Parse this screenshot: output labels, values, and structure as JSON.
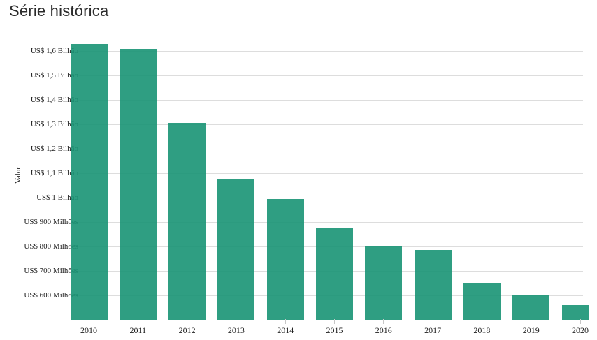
{
  "page": {
    "title": "Série histórica"
  },
  "chart_data": {
    "type": "bar",
    "title": "Série histórica",
    "xlabel": "",
    "ylabel": "Valor",
    "categories": [
      "2010",
      "2011",
      "2012",
      "2013",
      "2014",
      "2015",
      "2016",
      "2017",
      "2018",
      "2019",
      "2020"
    ],
    "values_usd_millions": [
      1630,
      1610,
      1305,
      1075,
      995,
      875,
      800,
      785,
      650,
      600,
      560
    ],
    "currency": "US$",
    "ylim_millions": [
      500,
      1650
    ],
    "grid": true,
    "legend": false,
    "y_ticks": [
      {
        "value_millions": 600,
        "label": "US$ 600 Milhões"
      },
      {
        "value_millions": 700,
        "label": "US$ 700 Milhões"
      },
      {
        "value_millions": 800,
        "label": "US$ 800 Milhões"
      },
      {
        "value_millions": 900,
        "label": "US$ 900 Milhões"
      },
      {
        "value_millions": 1000,
        "label": "US$ 1 Bilhão"
      },
      {
        "value_millions": 1100,
        "label": "US$ 1,1 Bilhão"
      },
      {
        "value_millions": 1200,
        "label": "US$ 1,2 Bilhão"
      },
      {
        "value_millions": 1300,
        "label": "US$ 1,3 Bilhão"
      },
      {
        "value_millions": 1400,
        "label": "US$ 1,4 Bilhão"
      },
      {
        "value_millions": 1500,
        "label": "US$ 1,5 Bilhão"
      },
      {
        "value_millions": 1600,
        "label": "US$ 1,6 Bilhão"
      }
    ],
    "colors": {
      "bar": "#189374",
      "bar_opacity": "0.9",
      "gridline": "#dddddd",
      "tick": "#c7c7c7",
      "axis_text": "#222222",
      "title_text": "#2b2b2b"
    }
  }
}
